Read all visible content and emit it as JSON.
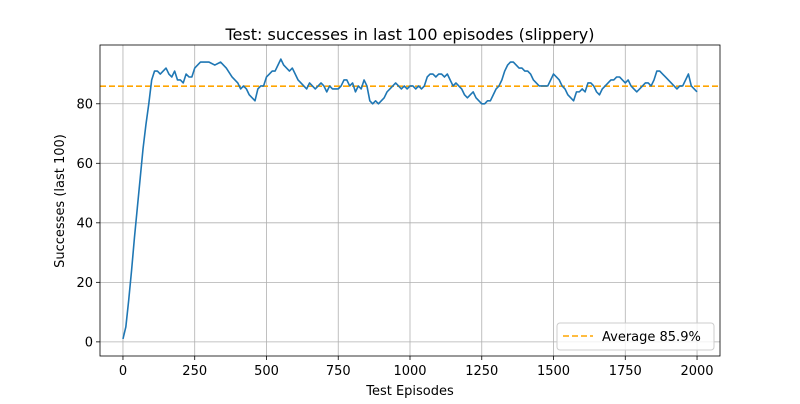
{
  "chart_data": {
    "type": "line",
    "title": "Test: successes in last 100 episodes (slippery)",
    "xlabel": "Test Episodes",
    "ylabel": "Successes (last 100)",
    "xlim": [
      -80,
      2080
    ],
    "ylim": [
      -4.75,
      99.75
    ],
    "xticks": [
      0,
      250,
      500,
      750,
      1000,
      1250,
      1500,
      1750,
      2000
    ],
    "yticks": [
      0,
      20,
      40,
      60,
      80
    ],
    "grid": true,
    "legend_position": "lower-right",
    "series": [
      {
        "color": "#1f77b4",
        "x": [
          0,
          10,
          20,
          30,
          40,
          50,
          60,
          70,
          80,
          90,
          100,
          110,
          120,
          130,
          140,
          150,
          160,
          170,
          180,
          190,
          200,
          210,
          220,
          230,
          240,
          250,
          260,
          270,
          280,
          290,
          300,
          320,
          340,
          360,
          380,
          400,
          410,
          420,
          430,
          440,
          450,
          460,
          470,
          480,
          490,
          500,
          510,
          520,
          530,
          540,
          550,
          560,
          570,
          580,
          590,
          600,
          610,
          620,
          630,
          640,
          650,
          660,
          670,
          680,
          690,
          700,
          710,
          720,
          730,
          740,
          750,
          760,
          770,
          780,
          790,
          800,
          810,
          820,
          830,
          840,
          850,
          860,
          870,
          880,
          890,
          900,
          910,
          920,
          930,
          940,
          950,
          960,
          970,
          980,
          990,
          1000,
          1010,
          1020,
          1030,
          1040,
          1050,
          1060,
          1070,
          1080,
          1090,
          1100,
          1110,
          1120,
          1130,
          1140,
          1150,
          1160,
          1170,
          1180,
          1190,
          1200,
          1210,
          1220,
          1230,
          1240,
          1250,
          1260,
          1270,
          1280,
          1290,
          1300,
          1310,
          1320,
          1330,
          1340,
          1350,
          1360,
          1370,
          1380,
          1390,
          1400,
          1410,
          1420,
          1430,
          1440,
          1450,
          1460,
          1470,
          1480,
          1490,
          1500,
          1510,
          1520,
          1530,
          1540,
          1550,
          1560,
          1570,
          1580,
          1590,
          1600,
          1610,
          1620,
          1630,
          1640,
          1650,
          1660,
          1670,
          1680,
          1690,
          1700,
          1710,
          1720,
          1730,
          1740,
          1750,
          1760,
          1770,
          1780,
          1790,
          1800,
          1810,
          1820,
          1830,
          1840,
          1850,
          1860,
          1870,
          1880,
          1890,
          1900,
          1910,
          1920,
          1930,
          1940,
          1950,
          1960,
          1970,
          1980,
          1990,
          2000
        ],
        "values": [
          1,
          5,
          14,
          24,
          35,
          45,
          55,
          65,
          73,
          80,
          88,
          91,
          91,
          90,
          91,
          92,
          90,
          89,
          91,
          88,
          88,
          87,
          90,
          89,
          89,
          92,
          93,
          94,
          94,
          94,
          94,
          93,
          94,
          92,
          89,
          87,
          85,
          86,
          85,
          83,
          82,
          81,
          85,
          86,
          86,
          89,
          90,
          91,
          91,
          93,
          95,
          93,
          92,
          91,
          92,
          90,
          88,
          87,
          86,
          85,
          87,
          86,
          85,
          86,
          87,
          86,
          84,
          86,
          85,
          85,
          85,
          86,
          88,
          88,
          86,
          87,
          84,
          86,
          85,
          88,
          86,
          81,
          80,
          81,
          80,
          81,
          82,
          84,
          85,
          86,
          87,
          86,
          85,
          86,
          85,
          86,
          86,
          85,
          86,
          85,
          86,
          89,
          90,
          90,
          89,
          90,
          90,
          89,
          90,
          88,
          86,
          87,
          86,
          85,
          83,
          82,
          83,
          84,
          82,
          81,
          80,
          80,
          81,
          81,
          83,
          85,
          86,
          88,
          91,
          93,
          94,
          94,
          93,
          92,
          92,
          91,
          91,
          90,
          88,
          87,
          86,
          86,
          86,
          86,
          88,
          90,
          89,
          88,
          86,
          85,
          83,
          82,
          81,
          84,
          84,
          85,
          84,
          87,
          87,
          86,
          84,
          83,
          85,
          86,
          87,
          88,
          88,
          89,
          89,
          88,
          87,
          88,
          86,
          85,
          84,
          85,
          86,
          87,
          87,
          86,
          88,
          91,
          91,
          90,
          89,
          88,
          87,
          86,
          85,
          86,
          86,
          88,
          90,
          86,
          85,
          84
        ]
      },
      {
        "name": "Average 85.9%",
        "type": "hline",
        "value": 85.9,
        "color": "#ffa500"
      }
    ]
  }
}
